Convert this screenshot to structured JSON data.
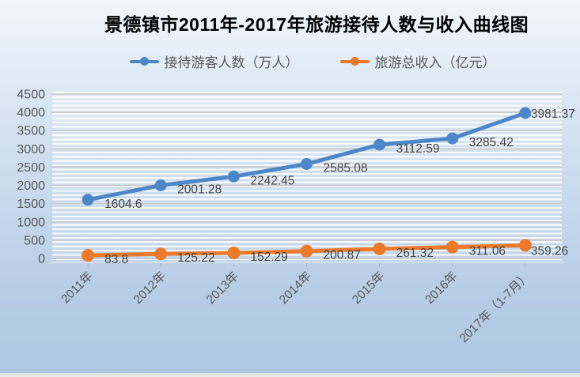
{
  "title": "景德镇市2011年-2017年旅游接待人数与收入曲线图",
  "legend": [
    {
      "label": "接待游客人数（万人）",
      "color": "#4e87c8"
    },
    {
      "label": "旅游总收入（亿元）",
      "color": "#ed7a2b"
    }
  ],
  "colors": {
    "series_visitors": "#4e87c8",
    "series_revenue": "#ed7a2b",
    "axis_text": "#595959",
    "data_label_text": "#454545",
    "gridline": "#c7cacd",
    "axis_line": "#dde2e7",
    "tick": "#a9b2bb"
  },
  "chart_data": {
    "type": "line",
    "title": "景德镇市2011年-2017年旅游接待人数与收入曲线图",
    "categories": [
      "2011年",
      "2012年",
      "2013年",
      "2014年",
      "2015年",
      "2016年",
      "2017年（1-7月）"
    ],
    "series": [
      {
        "name": "接待游客人数（万人）",
        "color": "#4e87c8",
        "values": [
          1604.6,
          2001.28,
          2242.45,
          2585.08,
          3112.59,
          3285.42,
          3981.37
        ],
        "labels": [
          "1604.6",
          "2001.28",
          "2242.45",
          "2585.08",
          "3112.59",
          "3285.42",
          "3981.37"
        ]
      },
      {
        "name": "旅游总收入（亿元）",
        "color": "#ed7a2b",
        "values": [
          83.8,
          125.22,
          152.29,
          200.87,
          261.32,
          311.06,
          359.26
        ],
        "labels": [
          "83.8",
          "125.22",
          "152.29",
          "200.87",
          "261.32",
          "311.06",
          "359.26"
        ]
      }
    ],
    "xlabel": "",
    "ylabel": "",
    "ylim": [
      0,
      4500
    ],
    "ytick_step": 500,
    "yticks": [
      0,
      500,
      1000,
      1500,
      2000,
      2500,
      3000,
      3500,
      4000,
      4500
    ],
    "grid": true,
    "legend_position": "top",
    "data_labels": true,
    "x_label_rotation_deg": -45
  }
}
